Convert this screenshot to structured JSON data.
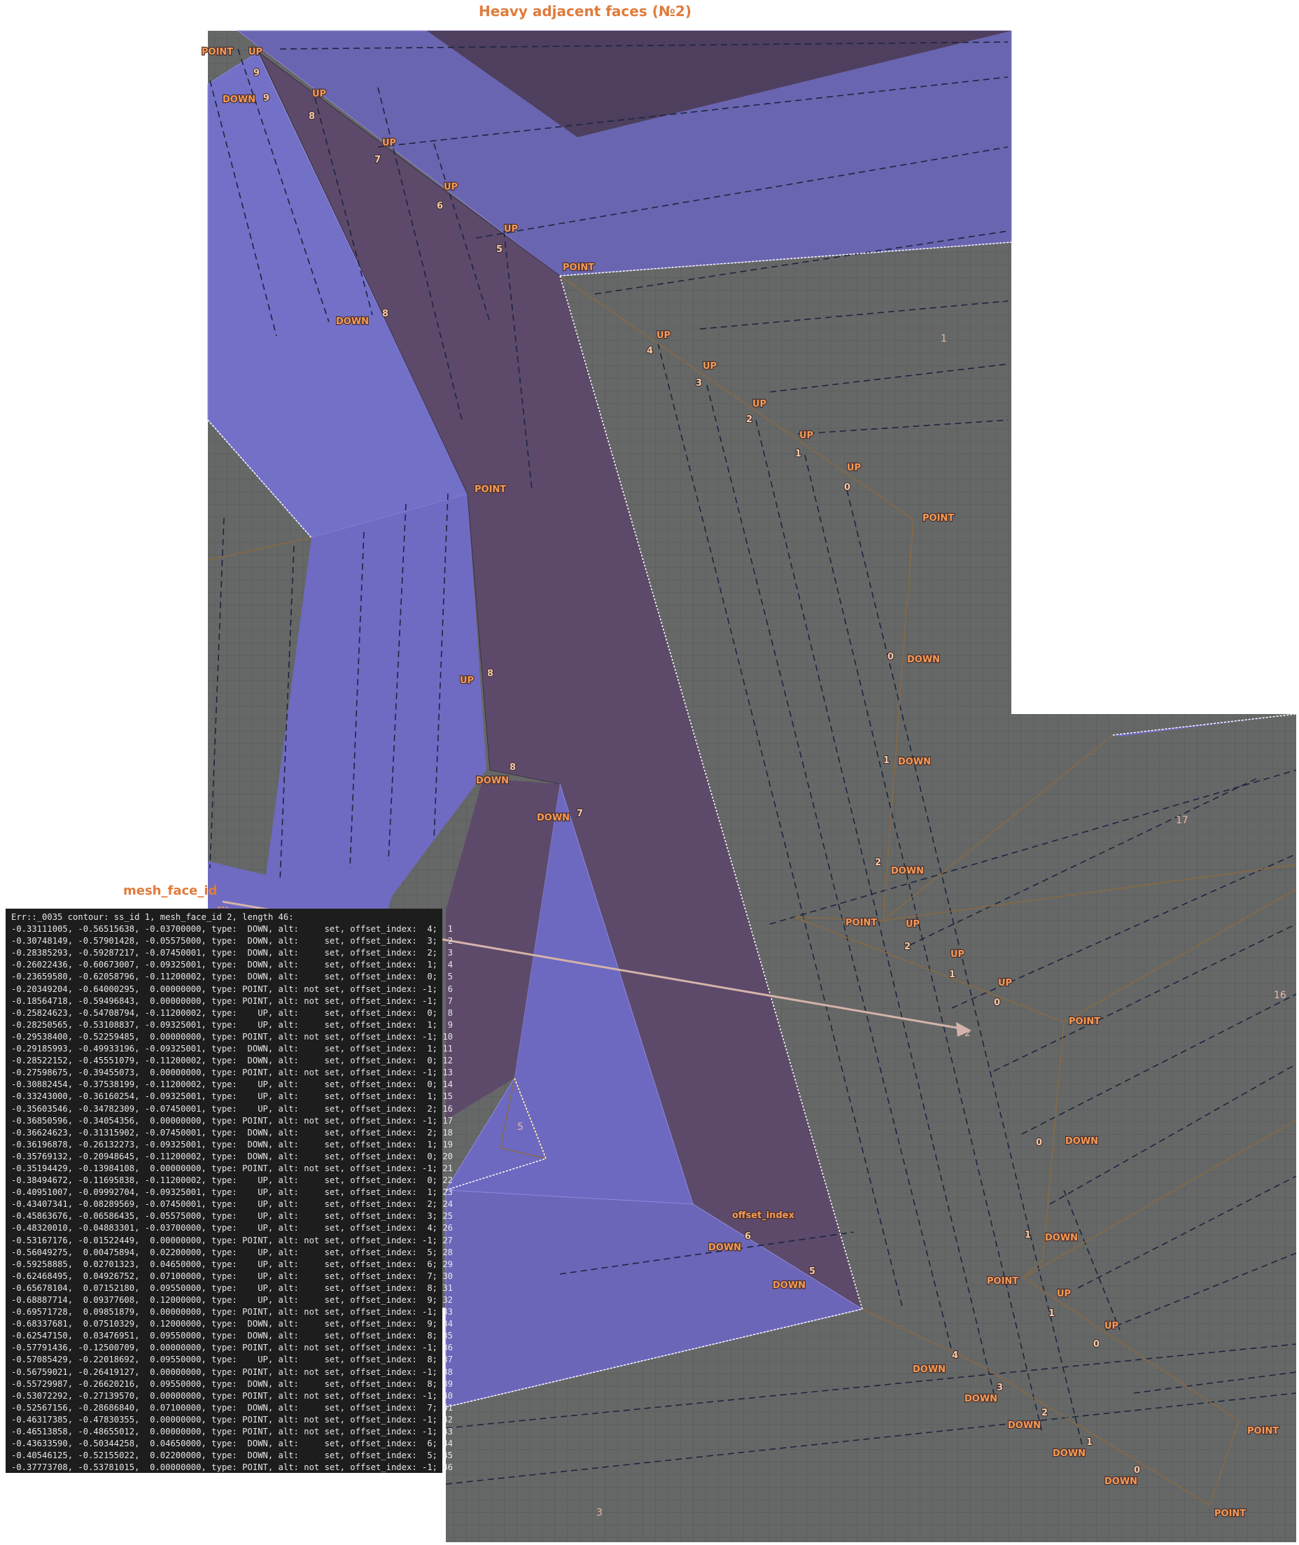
{
  "title": "Heavy adjacent faces (№2)",
  "colors": {
    "face_blue": "#6f6bc2",
    "face_dark": "#5d4a6a",
    "grid_bg": "#666867",
    "label_orange": "#f59a54",
    "log_bg": "#1d1d1d"
  },
  "vertex_labels": [
    {
      "kind": "POINT"
    },
    {
      "kind": "UP",
      "index": "9"
    },
    {
      "kind": "DOWN",
      "index": "9"
    },
    {
      "kind": "UP",
      "index": "8"
    },
    {
      "kind": "UP",
      "index": "7"
    },
    {
      "kind": "UP",
      "index": "6"
    },
    {
      "kind": "UP",
      "index": "5"
    },
    {
      "kind": "POINT"
    },
    {
      "kind": "DOWN",
      "index": "8"
    },
    {
      "kind": "UP",
      "index": "4"
    },
    {
      "kind": "UP",
      "index": "3"
    },
    {
      "kind": "UP",
      "index": "2"
    },
    {
      "kind": "UP",
      "index": "1"
    },
    {
      "kind": "UP",
      "index": "0"
    },
    {
      "kind": "POINT"
    },
    {
      "kind": "POINT"
    },
    {
      "kind": "DOWN",
      "index": "0"
    },
    {
      "kind": "DOWN",
      "index": "1"
    },
    {
      "kind": "DOWN",
      "index": "2"
    },
    {
      "kind": "UP",
      "index": "8"
    },
    {
      "kind": "DOWN",
      "index": "8"
    },
    {
      "kind": "DOWN",
      "index": "7"
    },
    {
      "kind": "POINT"
    },
    {
      "kind": "UP",
      "index": "2"
    },
    {
      "kind": "UP",
      "index": "1"
    },
    {
      "kind": "UP",
      "index": "0"
    },
    {
      "kind": "POINT"
    },
    {
      "kind": "DOWN",
      "index": "0"
    },
    {
      "kind": "DOWN",
      "index": "1"
    },
    {
      "kind": "POINT"
    },
    {
      "kind": "UP",
      "index": "1"
    },
    {
      "kind": "UP",
      "index": "0"
    },
    {
      "kind": "DOWN",
      "index": "4"
    },
    {
      "kind": "DOWN",
      "index": "3"
    },
    {
      "kind": "DOWN",
      "index": "2"
    },
    {
      "kind": "DOWN",
      "index": "1"
    },
    {
      "kind": "DOWN",
      "index": "0"
    },
    {
      "kind": "POINT"
    },
    {
      "kind": "POINT"
    },
    {
      "kind": "DOWN",
      "index": "6"
    },
    {
      "kind": "DOWN",
      "index": "5"
    },
    {
      "kind": "offset_index"
    }
  ],
  "face_numbers": [
    "1",
    "17",
    "16",
    "2",
    "5",
    "3"
  ],
  "mesh_face_label": "mesh_face_id",
  "log": {
    "header": "Err::_0035 contour: ss_id 1, mesh_face_id 2, length 46:",
    "rows": [
      "-0.33111005, -0.56515638, -0.03700000, type:  DOWN, alt:     set, offset_index:  4;  1",
      "-0.30748149, -0.57901428, -0.05575000, type:  DOWN, alt:     set, offset_index:  3;  2",
      "-0.28385293, -0.59287217, -0.07450001, type:  DOWN, alt:     set, offset_index:  2;  3",
      "-0.26022436, -0.60673007, -0.09325001, type:  DOWN, alt:     set, offset_index:  1;  4",
      "-0.23659580, -0.62058796, -0.11200002, type:  DOWN, alt:     set, offset_index:  0;  5",
      "-0.20349204, -0.64000295,  0.00000000, type: POINT, alt: not set, offset_index: -1;  6",
      "-0.18564718, -0.59496843,  0.00000000, type: POINT, alt: not set, offset_index: -1;  7",
      "-0.25824623, -0.54708794, -0.11200002, type:    UP, alt:     set, offset_index:  0;  8",
      "-0.28250565, -0.53108837, -0.09325001, type:    UP, alt:     set, offset_index:  1;  9",
      "-0.29538400, -0.52259485,  0.00000000, type: POINT, alt: not set, offset_index: -1; 10",
      "-0.29185993, -0.49933196, -0.09325001, type:  DOWN, alt:     set, offset_index:  1; 11",
      "-0.28522152, -0.45551079, -0.11200002, type:  DOWN, alt:     set, offset_index:  0; 12",
      "-0.27598675, -0.39455073,  0.00000000, type: POINT, alt: not set, offset_index: -1; 13",
      "-0.30882454, -0.37538199, -0.11200002, type:    UP, alt:     set, offset_index:  0; 14",
      "-0.33243000, -0.36160254, -0.09325001, type:    UP, alt:     set, offset_index:  1; 15",
      "-0.35603546, -0.34782309, -0.07450001, type:    UP, alt:     set, offset_index:  2; 16",
      "-0.36850596, -0.34054356,  0.00000000, type: POINT, alt: not set, offset_index: -1; 17",
      "-0.36624623, -0.31315902, -0.07450001, type:  DOWN, alt:     set, offset_index:  2; 18",
      "-0.36196878, -0.26132273, -0.09325001, type:  DOWN, alt:     set, offset_index:  1; 19",
      "-0.35769132, -0.20948645, -0.11200002, type:  DOWN, alt:     set, offset_index:  0; 20",
      "-0.35194429, -0.13984108,  0.00000000, type: POINT, alt: not set, offset_index: -1; 21",
      "-0.38494672, -0.11695838, -0.11200002, type:    UP, alt:     set, offset_index:  0; 22",
      "-0.40951007, -0.09992704, -0.09325001, type:    UP, alt:     set, offset_index:  1; 23",
      "-0.43407341, -0.08289569, -0.07450001, type:    UP, alt:     set, offset_index:  2; 24",
      "-0.45863676, -0.06586435, -0.05575000, type:    UP, alt:     set, offset_index:  3; 25",
      "-0.48320010, -0.04883301, -0.03700000, type:    UP, alt:     set, offset_index:  4; 26",
      "-0.53167176, -0.01522449,  0.00000000, type: POINT, alt: not set, offset_index: -1; 27",
      "-0.56049275,  0.00475894,  0.02200000, type:    UP, alt:     set, offset_index:  5; 28",
      "-0.59258885,  0.02701323,  0.04650000, type:    UP, alt:     set, offset_index:  6; 29",
      "-0.62468495,  0.04926752,  0.07100000, type:    UP, alt:     set, offset_index:  7; 30",
      "-0.65678104,  0.07152180,  0.09550000, type:    UP, alt:     set, offset_index:  8; 31",
      "-0.68887714,  0.09377608,  0.12000000, type:    UP, alt:     set, offset_index:  9; 32",
      "-0.69571728,  0.09851879,  0.00000000, type: POINT, alt: not set, offset_index: -1; 33",
      "-0.68337681,  0.07510329,  0.12000000, type:  DOWN, alt:     set, offset_index:  9; 34",
      "-0.62547150,  0.03476951,  0.09550000, type:  DOWN, alt:     set, offset_index:  8; 35",
      "-0.57791436, -0.12500709,  0.00000000, type: POINT, alt: not set, offset_index: -1; 36",
      "-0.57085429, -0.22018692,  0.09550000, type:    UP, alt:     set, offset_index:  8; 37",
      "-0.56759021, -0.26419127,  0.00000000, type: POINT, alt: not set, offset_index: -1; 38",
      "-0.55729987, -0.26620216,  0.09550000, type:  DOWN, alt:     set, offset_index:  8; 39",
      "-0.53072292, -0.27139570,  0.00000000, type: POINT, alt: not set, offset_index: -1; 40",
      "-0.52567156, -0.28686840,  0.07100000, type:  DOWN, alt:     set, offset_index:  7; 41",
      "-0.46317385, -0.47830355,  0.00000000, type: POINT, alt: not set, offset_index: -1; 42",
      "-0.46513858, -0.48655012,  0.00000000, type: POINT, alt: not set, offset_index: -1; 43",
      "-0.43633590, -0.50344258,  0.04650000, type:  DOWN, alt:     set, offset_index:  6; 44",
      "-0.40546125, -0.52155022,  0.02200000, type:  DOWN, alt:     set, offset_index:  5; 45",
      "-0.37773708, -0.53781015,  0.00000000, type: POINT, alt: not set, offset_index: -1; 46"
    ]
  }
}
